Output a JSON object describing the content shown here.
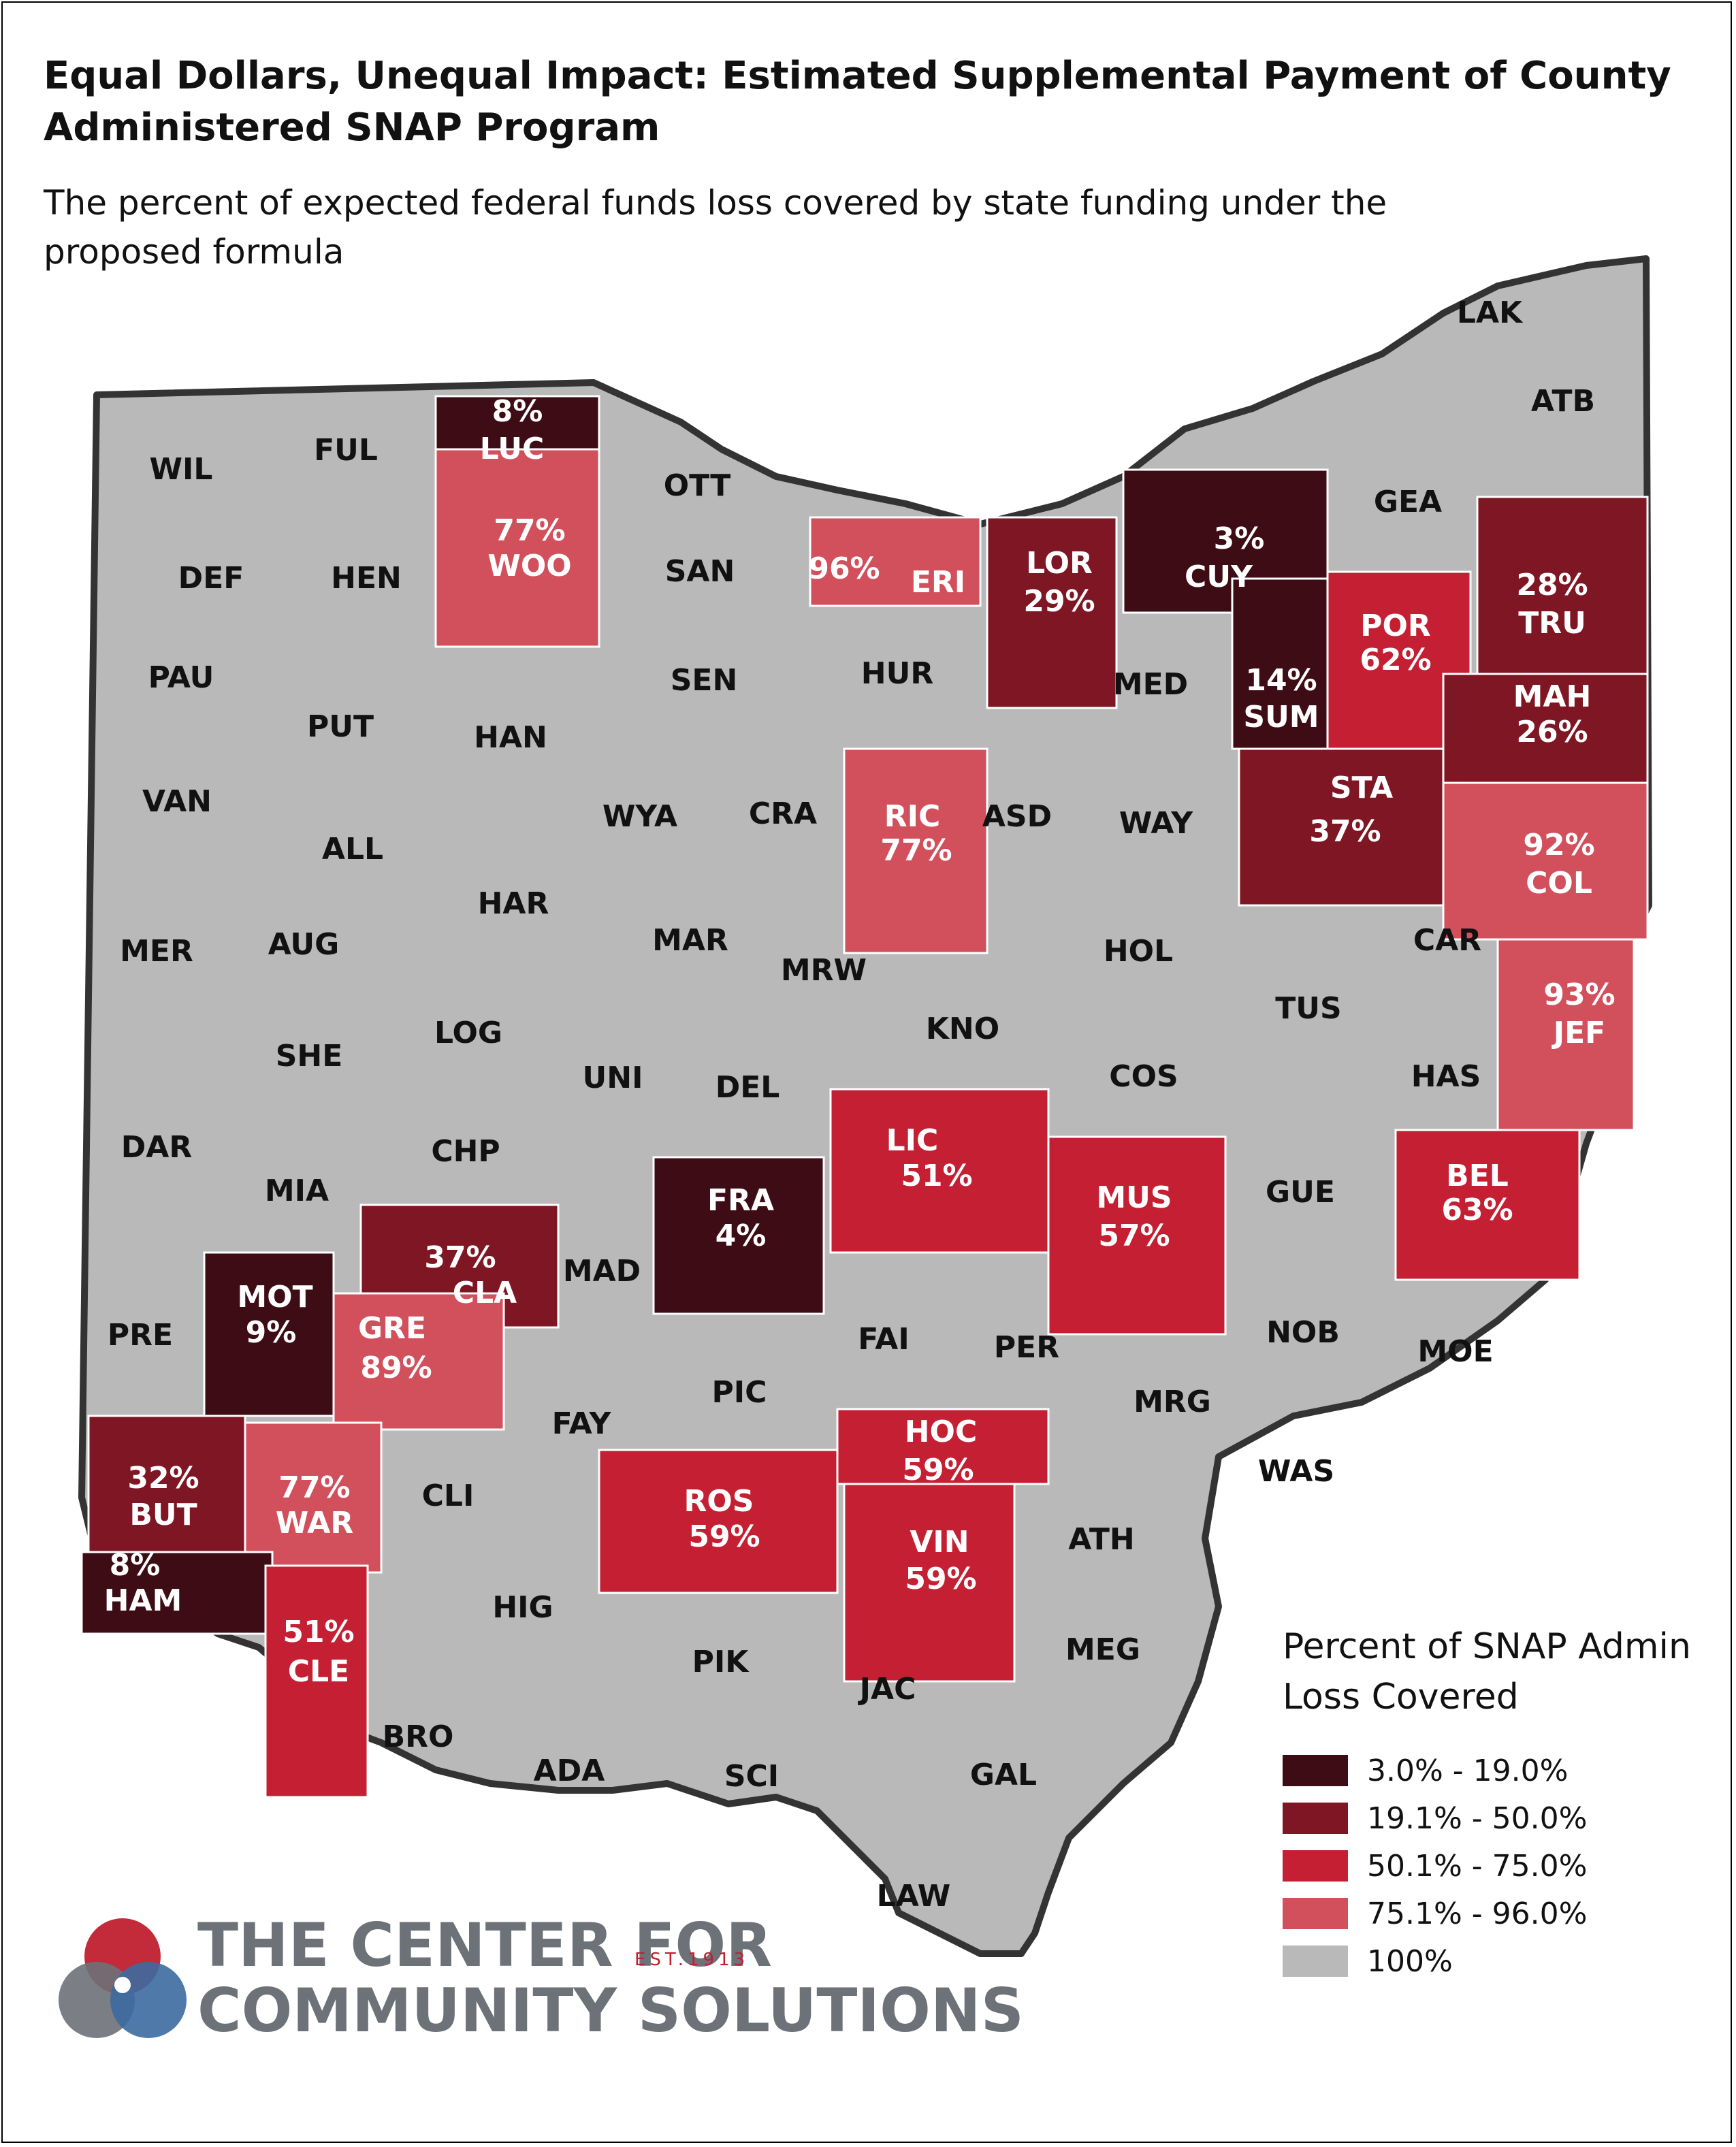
{
  "title": "Equal Dollars, Unequal Impact: Estimated Supplemental Payment of County Administered SNAP Program",
  "subtitle": "The percent of expected federal funds loss covered by state funding under the proposed formula",
  "legend": {
    "title": "Percent of SNAP Admin Loss Covered",
    "items": [
      {
        "label": "3.0% - 19.0%",
        "color": "#3d0c14"
      },
      {
        "label": "19.1% - 50.0%",
        "color": "#7e1623"
      },
      {
        "label": "50.1% - 75.0%",
        "color": "#c41f32"
      },
      {
        "label": "75.1% - 96.0%",
        "color": "#d24f5c"
      },
      {
        "label": "100%",
        "color": "#b9b9b9"
      }
    ]
  },
  "logo": {
    "line1": "THE CENTER FOR",
    "line2": "COMMUNITY SOLUTIONS",
    "est": "EST.1913"
  },
  "counties": [
    {
      "code": "LAK",
      "pct": null
    },
    {
      "code": "ATB",
      "pct": null
    },
    {
      "code": "WIL",
      "pct": null
    },
    {
      "code": "FUL",
      "pct": null
    },
    {
      "code": "LUC",
      "pct": "8%"
    },
    {
      "code": "OTT",
      "pct": null
    },
    {
      "code": "WOO",
      "pct": "77%"
    },
    {
      "code": "GEA",
      "pct": null
    },
    {
      "code": "DEF",
      "pct": null
    },
    {
      "code": "HEN",
      "pct": null
    },
    {
      "code": "SAN",
      "pct": null
    },
    {
      "code": "ERI",
      "pct": "96%"
    },
    {
      "code": "LOR",
      "pct": "29%"
    },
    {
      "code": "CUY",
      "pct": "3%"
    },
    {
      "code": "TRU",
      "pct": "28%"
    },
    {
      "code": "POR",
      "pct": "62%"
    },
    {
      "code": "SUM",
      "pct": "14%"
    },
    {
      "code": "PAU",
      "pct": null
    },
    {
      "code": "SEN",
      "pct": null
    },
    {
      "code": "HUR",
      "pct": null
    },
    {
      "code": "MED",
      "pct": null
    },
    {
      "code": "MAH",
      "pct": "26%"
    },
    {
      "code": "PUT",
      "pct": null
    },
    {
      "code": "HAN",
      "pct": null
    },
    {
      "code": "VAN",
      "pct": null
    },
    {
      "code": "WYA",
      "pct": null
    },
    {
      "code": "CRA",
      "pct": null
    },
    {
      "code": "RIC",
      "pct": "77%"
    },
    {
      "code": "ASD",
      "pct": null
    },
    {
      "code": "WAY",
      "pct": null
    },
    {
      "code": "STA",
      "pct": "37%"
    },
    {
      "code": "ALL",
      "pct": null
    },
    {
      "code": "COL",
      "pct": "92%"
    },
    {
      "code": "HAR",
      "pct": null
    },
    {
      "code": "MER",
      "pct": null
    },
    {
      "code": "AUG",
      "pct": null
    },
    {
      "code": "MAR",
      "pct": null
    },
    {
      "code": "HOL",
      "pct": null
    },
    {
      "code": "CAR",
      "pct": null
    },
    {
      "code": "MRW",
      "pct": null
    },
    {
      "code": "JEF",
      "pct": "93%"
    },
    {
      "code": "TUS",
      "pct": null
    },
    {
      "code": "LOG",
      "pct": null
    },
    {
      "code": "KNO",
      "pct": null
    },
    {
      "code": "SHE",
      "pct": null
    },
    {
      "code": "UNI",
      "pct": null
    },
    {
      "code": "COS",
      "pct": null
    },
    {
      "code": "HAS",
      "pct": null
    },
    {
      "code": "DEL",
      "pct": null
    },
    {
      "code": "LIC",
      "pct": "51%"
    },
    {
      "code": "DAR",
      "pct": null
    },
    {
      "code": "CHP",
      "pct": null
    },
    {
      "code": "BEL",
      "pct": "63%"
    },
    {
      "code": "MIA",
      "pct": null
    },
    {
      "code": "MUS",
      "pct": "57%"
    },
    {
      "code": "GUE",
      "pct": null
    },
    {
      "code": "FRA",
      "pct": "4%"
    },
    {
      "code": "CLA",
      "pct": "37%"
    },
    {
      "code": "MAD",
      "pct": null
    },
    {
      "code": "MOT",
      "pct": "9%"
    },
    {
      "code": "NOB",
      "pct": null
    },
    {
      "code": "PRE",
      "pct": null
    },
    {
      "code": "GRE",
      "pct": "89%"
    },
    {
      "code": "FAI",
      "pct": null
    },
    {
      "code": "PER",
      "pct": null
    },
    {
      "code": "MOE",
      "pct": null
    },
    {
      "code": "PIC",
      "pct": null
    },
    {
      "code": "MRG",
      "pct": null
    },
    {
      "code": "FAY",
      "pct": null
    },
    {
      "code": "HOC",
      "pct": "59%"
    },
    {
      "code": "WAS",
      "pct": null
    },
    {
      "code": "BUT",
      "pct": "32%"
    },
    {
      "code": "WAR",
      "pct": "77%"
    },
    {
      "code": "CLI",
      "pct": null
    },
    {
      "code": "ROS",
      "pct": "59%"
    },
    {
      "code": "ATH",
      "pct": null
    },
    {
      "code": "VIN",
      "pct": "59%"
    },
    {
      "code": "HAM",
      "pct": "8%"
    },
    {
      "code": "HIG",
      "pct": null
    },
    {
      "code": "CLE",
      "pct": "51%"
    },
    {
      "code": "MEG",
      "pct": null
    },
    {
      "code": "PIK",
      "pct": null
    },
    {
      "code": "JAC",
      "pct": null
    },
    {
      "code": "BRO",
      "pct": null
    },
    {
      "code": "ADA",
      "pct": null
    },
    {
      "code": "SCI",
      "pct": null
    },
    {
      "code": "GAL",
      "pct": null
    },
    {
      "code": "LAW",
      "pct": null
    }
  ]
}
